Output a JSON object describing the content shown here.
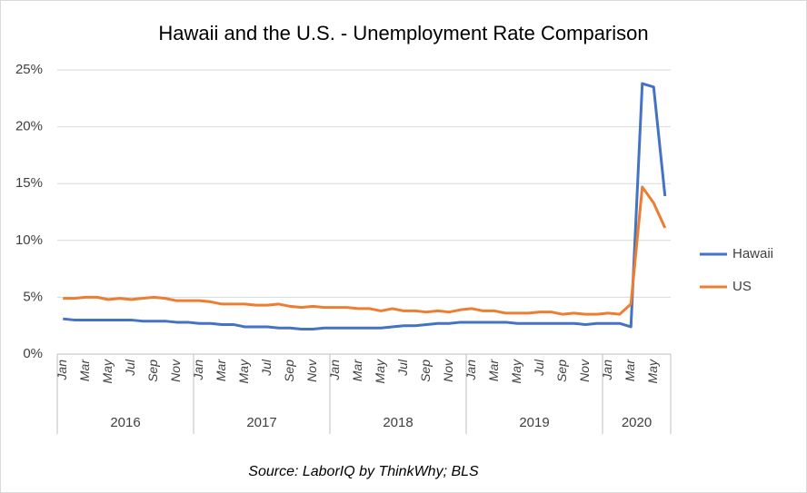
{
  "chart_data": {
    "type": "line",
    "title": "Hawaii and the U.S. - Unemployment  Rate Comparison",
    "source": "Source: LaborIQ by ThinkWhy; BLS",
    "categories": [
      "Jan",
      null,
      "Mar",
      null,
      "May",
      null,
      "Jul",
      null,
      "Sep",
      null,
      "Nov",
      null,
      "Jan",
      null,
      "Mar",
      null,
      "May",
      null,
      "Jul",
      null,
      "Sep",
      null,
      "Nov",
      null,
      "Jan",
      null,
      "Mar",
      null,
      "May",
      null,
      "Jul",
      null,
      "Sep",
      null,
      "Nov",
      null,
      "Jan",
      null,
      "Mar",
      null,
      "May",
      null,
      "Jul",
      null,
      "Sep",
      null,
      "Nov",
      null,
      "Jan",
      null,
      "Mar",
      null,
      "May",
      null
    ],
    "x_groups": [
      {
        "label": "2016",
        "span": 12
      },
      {
        "label": "2017",
        "span": 12
      },
      {
        "label": "2018",
        "span": 12
      },
      {
        "label": "2019",
        "span": 12
      },
      {
        "label": "2020",
        "span": 6
      }
    ],
    "series": [
      {
        "name": "Hawaii",
        "color": "#4472c4",
        "values": [
          3.1,
          3.0,
          3.0,
          3.0,
          3.0,
          3.0,
          3.0,
          2.9,
          2.9,
          2.9,
          2.8,
          2.8,
          2.7,
          2.7,
          2.6,
          2.6,
          2.4,
          2.4,
          2.4,
          2.3,
          2.3,
          2.2,
          2.2,
          2.3,
          2.3,
          2.3,
          2.3,
          2.3,
          2.3,
          2.4,
          2.5,
          2.5,
          2.6,
          2.7,
          2.7,
          2.8,
          2.8,
          2.8,
          2.8,
          2.8,
          2.7,
          2.7,
          2.7,
          2.7,
          2.7,
          2.7,
          2.6,
          2.7,
          2.7,
          2.7,
          2.4,
          23.8,
          23.5,
          13.9
        ]
      },
      {
        "name": "US",
        "color": "#ed7d31",
        "values": [
          4.9,
          4.9,
          5.0,
          5.0,
          4.8,
          4.9,
          4.8,
          4.9,
          5.0,
          4.9,
          4.7,
          4.7,
          4.7,
          4.6,
          4.4,
          4.4,
          4.4,
          4.3,
          4.3,
          4.4,
          4.2,
          4.1,
          4.2,
          4.1,
          4.1,
          4.1,
          4.0,
          4.0,
          3.8,
          4.0,
          3.8,
          3.8,
          3.7,
          3.8,
          3.7,
          3.9,
          4.0,
          3.8,
          3.8,
          3.6,
          3.6,
          3.6,
          3.7,
          3.7,
          3.5,
          3.6,
          3.5,
          3.5,
          3.6,
          3.5,
          4.4,
          14.7,
          13.3,
          11.1
        ]
      }
    ],
    "ylim": [
      0,
      25
    ],
    "yticks": [
      {
        "value": 0,
        "label": "0%"
      },
      {
        "value": 5,
        "label": "5%"
      },
      {
        "value": 10,
        "label": "10%"
      },
      {
        "value": 15,
        "label": "15%"
      },
      {
        "value": 20,
        "label": "20%"
      },
      {
        "value": 25,
        "label": "25%"
      }
    ],
    "grid": true,
    "legend": "right"
  }
}
